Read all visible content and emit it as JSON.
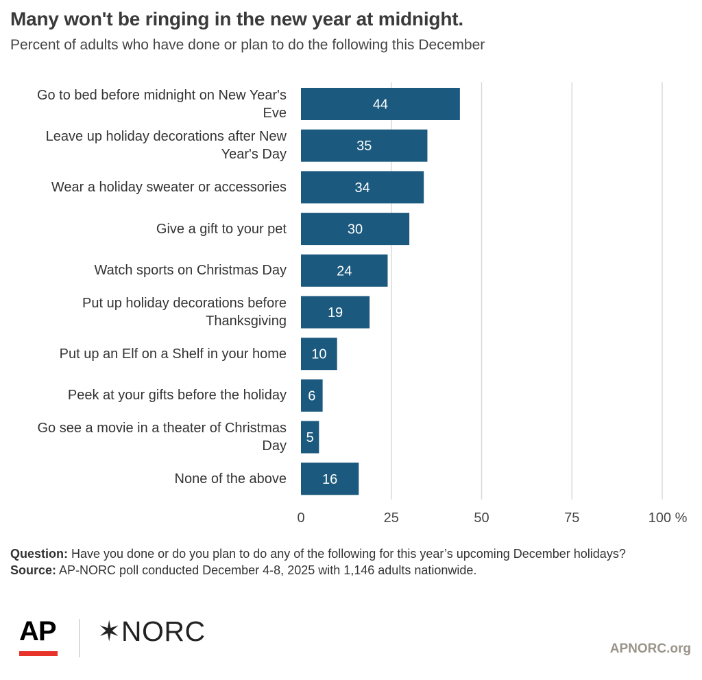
{
  "title": "Many won't be ringing in the new year at midnight.",
  "subtitle": "Percent of adults who have done or plan to do the following this December",
  "chart_data": {
    "type": "bar",
    "orientation": "horizontal",
    "categories": [
      "Go to bed before midnight on New Year's Eve",
      "Leave up holiday decorations after New Year's Day",
      "Wear a holiday sweater or accessories",
      "Give a gift to your pet",
      "Watch sports on Christmas Day",
      "Put up holiday decorations before Thanksgiving",
      "Put up an Elf on a Shelf in your home",
      "Peek at your gifts before the holiday",
      "Go see a movie in a theater of Christmas Day",
      "None of the above"
    ],
    "category_lines": [
      [
        "Go to bed before midnight on New Year's",
        "Eve"
      ],
      [
        "Leave up holiday decorations after New",
        "Year's Day"
      ],
      [
        "Wear a holiday sweater or accessories"
      ],
      [
        "Give a gift to your pet"
      ],
      [
        "Watch sports on Christmas Day"
      ],
      [
        "Put up holiday decorations before",
        "Thanksgiving"
      ],
      [
        "Put up an Elf on a Shelf in your home"
      ],
      [
        "Peek at your gifts before the holiday"
      ],
      [
        "Go see a movie in a theater of Christmas",
        "Day"
      ],
      [
        "None of the above"
      ]
    ],
    "values": [
      44,
      35,
      34,
      30,
      24,
      19,
      10,
      6,
      5,
      16
    ],
    "xlim": [
      0,
      100
    ],
    "x_ticks": [
      0,
      25,
      50,
      75,
      100
    ],
    "x_tick_labels": [
      "0",
      "25",
      "50",
      "75",
      "100 %"
    ],
    "grid": true,
    "bar_color": "#1b5a7e",
    "label_color": "#ffffff",
    "grid_color": "#d9d9d9"
  },
  "notes": {
    "question_label": "Question:",
    "question_text": "Have you done or do you plan to do any of the following for this year’s upcoming December holidays?",
    "source_label": "Source:",
    "source_text": "AP-NORC poll conducted December 4-8, 2025 with 1,146 adults nationwide."
  },
  "branding": {
    "ap_logo": "AP",
    "norc_logo": "✶NORC",
    "ap_accent": "#e8332a",
    "site": "APNORC.org"
  }
}
